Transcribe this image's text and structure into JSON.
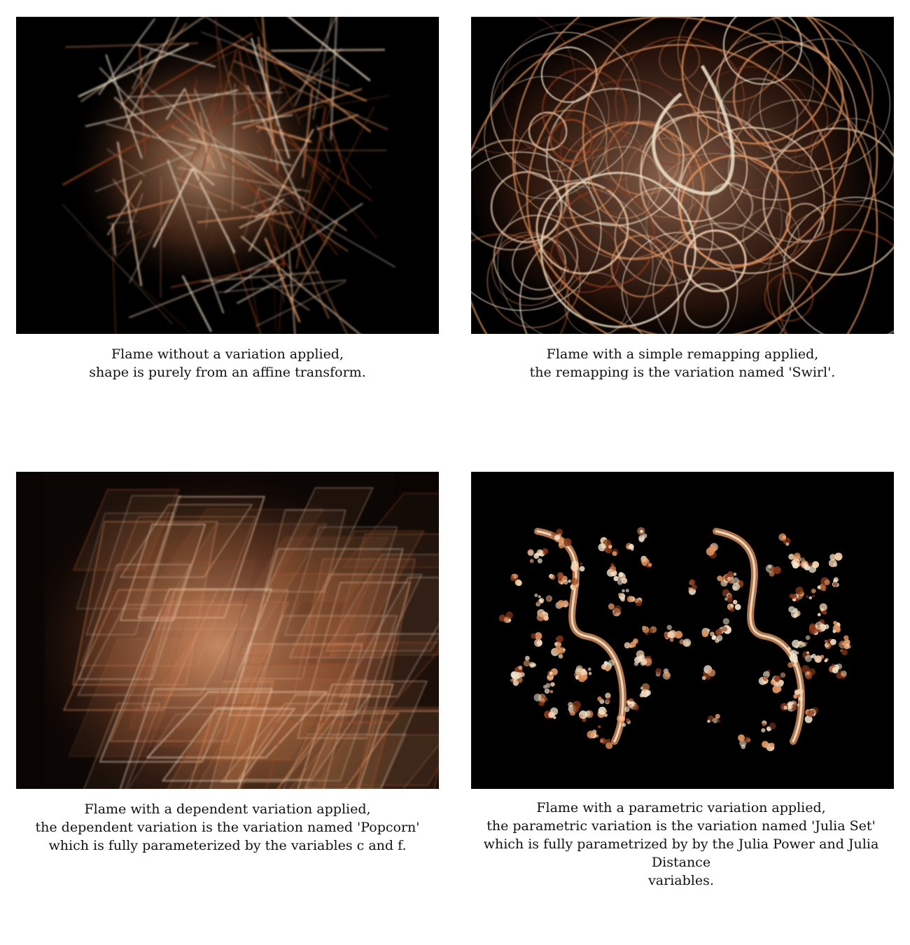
{
  "panels": [
    {
      "id": "no-variation",
      "caption": [
        "Flame without a variation applied,",
        "shape is purely from an affine transform."
      ]
    },
    {
      "id": "swirl",
      "caption": [
        "Flame with a simple remapping applied,",
        "the remapping is the variation named 'Swirl'."
      ]
    },
    {
      "id": "popcorn",
      "caption": [
        "Flame with a dependent variation applied,",
        "the dependent variation is the variation named 'Popcorn'",
        "which is fully parameterized by the variables c and f."
      ]
    },
    {
      "id": "julia-set",
      "caption": [
        "Flame with a parametric variation applied,",
        "the parametric variation is the variation named 'Julia Set'",
        "which is fully parametrized by by the Julia Power and Julia Distance",
        "variables."
      ]
    }
  ],
  "colors": {
    "background": "#000000",
    "flame_light": "#f5d2b0",
    "flame_mid": "#e0925e",
    "flame_dark": "#8a3a1a",
    "flame_cream": "#f0e4cc"
  }
}
